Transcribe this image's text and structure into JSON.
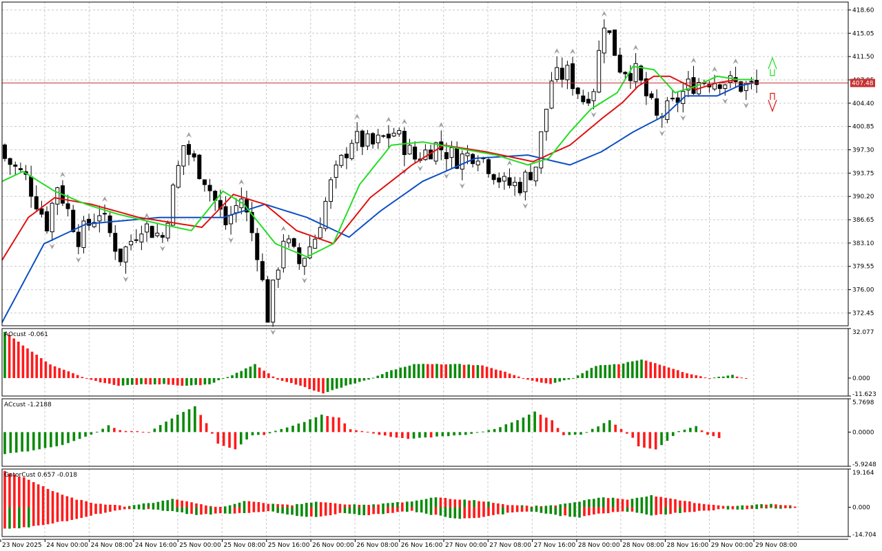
{
  "window": {
    "price_line": 407.48,
    "price_label": "407.48",
    "colors": {
      "bull_candle": "#ffffff",
      "bear_candle": "#000000",
      "jaw": "#0d4fc4",
      "teeth": "#e01010",
      "lips": "#22dd22",
      "up_bar": "#0a8a0a",
      "down_bar": "#ff1a1a",
      "price_line": "#c83232",
      "grid": "#c8c8c8",
      "fractal": "#a0a0a0"
    }
  },
  "chart_data": [
    {
      "type": "candlestick",
      "pane": "price",
      "ylim": [
        370.5,
        419.8
      ],
      "y_ticks": [
        "418.60",
        "415.05",
        "411.50",
        "407.95",
        "404.40",
        "400.85",
        "397.30",
        "393.75",
        "390.20",
        "386.65",
        "383.10",
        "379.55",
        "376.00",
        "372.45"
      ],
      "x_ticks": [
        "23 Nov 2025",
        "24 Nov 00:00",
        "24 Nov 08:00",
        "24 Nov 16:00",
        "25 Nov 00:00",
        "25 Nov 08:00",
        "25 Nov 16:00",
        "26 Nov 00:00",
        "26 Nov 08:00",
        "26 Nov 16:00",
        "27 Nov 00:00",
        "27 Nov 08:00",
        "27 Nov 16:00",
        "28 Nov 00:00",
        "28 Nov 08:00",
        "28 Nov 16:00",
        "29 Nov 00:00",
        "29 Nov 08:00"
      ],
      "indicators": [
        "Alligator Jaw",
        "Alligator Teeth",
        "Alligator Lips",
        "Fractals"
      ],
      "close_anchors": [
        [
          0,
          396
        ],
        [
          4,
          393
        ],
        [
          8,
          386
        ],
        [
          10,
          392
        ],
        [
          14,
          384
        ],
        [
          18,
          388
        ],
        [
          22,
          381
        ],
        [
          26,
          386
        ],
        [
          30,
          384
        ],
        [
          34,
          398
        ],
        [
          38,
          393
        ],
        [
          42,
          386
        ],
        [
          45,
          390
        ],
        [
          48,
          382
        ],
        [
          50,
          372
        ],
        [
          53,
          384
        ],
        [
          56,
          380
        ],
        [
          59,
          384
        ],
        [
          62,
          392
        ],
        [
          66,
          399
        ],
        [
          70,
          398
        ],
        [
          74,
          400
        ],
        [
          78,
          396
        ],
        [
          82,
          398
        ],
        [
          86,
          396
        ],
        [
          90,
          397
        ],
        [
          95,
          392
        ],
        [
          98,
          392
        ],
        [
          101,
          395
        ],
        [
          104,
          408
        ],
        [
          107,
          409
        ],
        [
          110,
          405
        ],
        [
          112,
          407
        ],
        [
          114,
          417
        ],
        [
          117,
          410
        ],
        [
          120,
          409
        ],
        [
          124,
          402
        ],
        [
          127,
          404
        ],
        [
          130,
          407
        ],
        [
          133,
          408
        ],
        [
          136,
          408
        ],
        [
          140,
          407
        ],
        [
          143,
          407
        ]
      ],
      "jaw_anchors": [
        [
          0,
          371
        ],
        [
          8,
          383
        ],
        [
          16,
          386
        ],
        [
          30,
          387
        ],
        [
          42,
          387
        ],
        [
          50,
          389
        ],
        [
          58,
          387
        ],
        [
          66,
          384
        ],
        [
          72,
          388
        ],
        [
          80,
          392.5
        ],
        [
          90,
          396
        ],
        [
          100,
          396.5
        ],
        [
          108,
          395
        ],
        [
          114,
          397
        ],
        [
          120,
          400
        ],
        [
          126,
          402.5
        ],
        [
          130,
          405.5
        ],
        [
          136,
          405.5
        ],
        [
          140,
          407
        ],
        [
          143,
          407.5
        ]
      ],
      "teeth_anchors": [
        [
          0,
          380.5
        ],
        [
          5,
          387
        ],
        [
          10,
          390
        ],
        [
          17,
          389
        ],
        [
          26,
          387
        ],
        [
          38,
          385.5
        ],
        [
          44,
          390.5
        ],
        [
          50,
          389
        ],
        [
          56,
          385
        ],
        [
          63,
          383
        ],
        [
          70,
          390
        ],
        [
          78,
          395
        ],
        [
          84,
          398
        ],
        [
          92,
          397
        ],
        [
          101,
          395.5
        ],
        [
          108,
          398
        ],
        [
          114,
          402
        ],
        [
          118,
          404.5
        ],
        [
          121,
          407
        ],
        [
          124,
          408.5
        ],
        [
          127,
          408.5
        ],
        [
          132,
          406.5
        ],
        [
          136,
          407.5
        ],
        [
          140,
          408
        ],
        [
          143,
          408
        ]
      ],
      "lips_anchors": [
        [
          0,
          392.5
        ],
        [
          4,
          394
        ],
        [
          10,
          391
        ],
        [
          16,
          389
        ],
        [
          22,
          387.5
        ],
        [
          30,
          386
        ],
        [
          36,
          385
        ],
        [
          42,
          391
        ],
        [
          46,
          389
        ],
        [
          52,
          383
        ],
        [
          58,
          381
        ],
        [
          63,
          383
        ],
        [
          68,
          392
        ],
        [
          74,
          398
        ],
        [
          80,
          398.5
        ],
        [
          87,
          397.5
        ],
        [
          94,
          396.5
        ],
        [
          100,
          395
        ],
        [
          104,
          396
        ],
        [
          108,
          400
        ],
        [
          112,
          403.5
        ],
        [
          117,
          406
        ],
        [
          120,
          410
        ],
        [
          124,
          409.5
        ],
        [
          128,
          406
        ],
        [
          132,
          407
        ],
        [
          136,
          408.5
        ],
        [
          140,
          408
        ]
      ]
    },
    {
      "type": "bar",
      "pane": "AOcust",
      "label": "AOcust -0.061",
      "ylim": [
        -11.623,
        32.077
      ],
      "y_ticks": [
        "32.077",
        "0.000",
        "-11.623"
      ],
      "anchors": [
        [
          0,
          30
        ],
        [
          5,
          19
        ],
        [
          10,
          9
        ],
        [
          15,
          3
        ],
        [
          20,
          -2
        ],
        [
          25,
          -5
        ],
        [
          30,
          -4
        ],
        [
          35,
          -4
        ],
        [
          40,
          -5
        ],
        [
          45,
          -4
        ],
        [
          50,
          2
        ],
        [
          55,
          9
        ],
        [
          60,
          -1
        ],
        [
          65,
          -5
        ],
        [
          70,
          -10
        ],
        [
          75,
          -5
        ],
        [
          80,
          -1
        ],
        [
          85,
          5
        ],
        [
          90,
          9
        ],
        [
          95,
          9
        ],
        [
          100,
          9
        ],
        [
          105,
          8
        ],
        [
          110,
          4
        ],
        [
          115,
          -1
        ],
        [
          120,
          -4
        ],
        [
          125,
          0
        ],
        [
          130,
          8
        ],
        [
          135,
          9
        ],
        [
          140,
          12
        ],
        [
          145,
          8
        ],
        [
          150,
          3
        ],
        [
          155,
          0
        ],
        [
          160,
          2
        ],
        [
          163,
          -0.5
        ]
      ]
    },
    {
      "type": "bar",
      "pane": "ACcust",
      "label": "ACcust -1.2188",
      "ylim": [
        -5.9248,
        5.7698
      ],
      "y_ticks": [
        "5.7698",
        "0.0000",
        "-5.9248"
      ],
      "anchors": [
        [
          0,
          -3.8
        ],
        [
          5,
          -3.2
        ],
        [
          10,
          -2.2
        ],
        [
          15,
          -0.5
        ],
        [
          18,
          1.2
        ],
        [
          20,
          0.3
        ],
        [
          25,
          0
        ],
        [
          30,
          3.0
        ],
        [
          33,
          4.5
        ],
        [
          35,
          1.5
        ],
        [
          37,
          -2.0
        ],
        [
          40,
          -3.0
        ],
        [
          43,
          -0.5
        ],
        [
          45,
          -0.5
        ],
        [
          48,
          0.5
        ],
        [
          52,
          1.8
        ],
        [
          55,
          3.0
        ],
        [
          58,
          2.5
        ],
        [
          60,
          0.5
        ],
        [
          63,
          0
        ],
        [
          65,
          -0.5
        ],
        [
          70,
          -1.2
        ],
        [
          75,
          -0.8
        ],
        [
          80,
          -0.5
        ],
        [
          85,
          0.5
        ],
        [
          90,
          2.5
        ],
        [
          92,
          3.5
        ],
        [
          95,
          2.0
        ],
        [
          97,
          -0.5
        ],
        [
          100,
          -0.5
        ],
        [
          103,
          1.0
        ],
        [
          105,
          2.0
        ],
        [
          107,
          0.5
        ],
        [
          109,
          -1.0
        ],
        [
          110,
          -2.5
        ],
        [
          113,
          -3.0
        ],
        [
          115,
          -1.5
        ],
        [
          117,
          0.2
        ],
        [
          120,
          1.0
        ],
        [
          122,
          -0.5
        ],
        [
          124,
          -1.0
        ]
      ]
    },
    {
      "type": "bar",
      "pane": "GatorCust",
      "label": "GatorCust 0.657 -0.018",
      "ylim": [
        -14.704,
        19.164
      ],
      "y_ticks": [
        "19.164",
        "0.000",
        "-14.704"
      ],
      "upper_anchors": [
        [
          0,
          18
        ],
        [
          5,
          14
        ],
        [
          10,
          8
        ],
        [
          15,
          4
        ],
        [
          20,
          1.5
        ],
        [
          25,
          0.5
        ],
        [
          30,
          2
        ],
        [
          35,
          4
        ],
        [
          40,
          2
        ],
        [
          45,
          -0.5
        ],
        [
          50,
          3
        ],
        [
          55,
          2
        ],
        [
          60,
          1
        ],
        [
          65,
          3
        ],
        [
          70,
          1.5
        ],
        [
          75,
          1
        ],
        [
          80,
          2
        ],
        [
          85,
          3
        ],
        [
          90,
          5
        ],
        [
          95,
          4
        ],
        [
          100,
          3
        ],
        [
          105,
          1
        ],
        [
          110,
          0.5
        ],
        [
          115,
          1
        ],
        [
          120,
          3
        ],
        [
          125,
          5
        ],
        [
          130,
          4
        ],
        [
          135,
          6
        ],
        [
          140,
          4
        ],
        [
          145,
          2
        ],
        [
          150,
          0.5
        ],
        [
          155,
          1
        ],
        [
          160,
          1.5
        ],
        [
          165,
          0.5
        ]
      ],
      "lower_anchors": [
        [
          0,
          -11
        ],
        [
          5,
          -10
        ],
        [
          10,
          -8
        ],
        [
          15,
          -6
        ],
        [
          20,
          -3
        ],
        [
          25,
          -1
        ],
        [
          30,
          -1
        ],
        [
          35,
          -2
        ],
        [
          40,
          -4
        ],
        [
          45,
          -3
        ],
        [
          50,
          -3
        ],
        [
          55,
          -2
        ],
        [
          60,
          -4
        ],
        [
          65,
          -5
        ],
        [
          70,
          -3
        ],
        [
          75,
          -4
        ],
        [
          80,
          -3
        ],
        [
          85,
          -2
        ],
        [
          90,
          -4
        ],
        [
          95,
          -6
        ],
        [
          100,
          -5
        ],
        [
          105,
          -3
        ],
        [
          110,
          -2
        ],
        [
          115,
          -4
        ],
        [
          120,
          -5
        ],
        [
          125,
          -3
        ],
        [
          130,
          -2
        ],
        [
          135,
          -4
        ],
        [
          140,
          -3
        ],
        [
          145,
          -2
        ],
        [
          150,
          -1
        ],
        [
          155,
          -1
        ],
        [
          160,
          -0.5
        ],
        [
          165,
          -0.5
        ]
      ]
    }
  ]
}
